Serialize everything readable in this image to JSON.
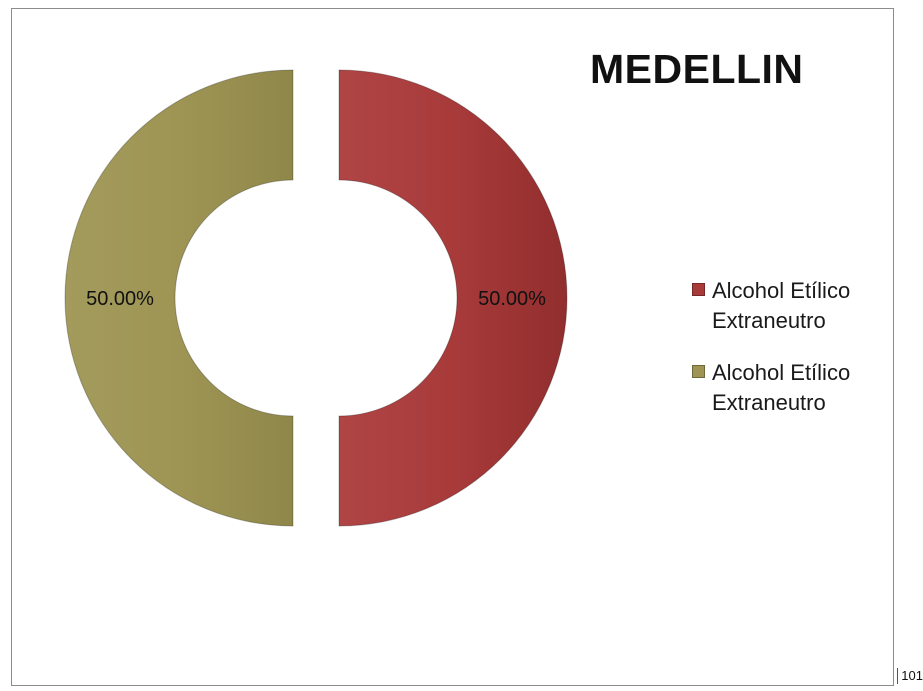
{
  "chart_data": {
    "type": "pie",
    "variant": "donut",
    "title": "MEDELLIN",
    "slices": [
      {
        "label": "Alcohol Etílico Extraneutro",
        "value": 50.0,
        "data_label": "50.00%",
        "color": "#a83a3a"
      },
      {
        "label": "Alcohol Etílico Extraneutro",
        "value": 50.0,
        "data_label": "50.00%",
        "color": "#9e9554"
      }
    ],
    "legend": {
      "placement": "right",
      "entries": [
        "Alcohol Etílico Extraneutro",
        "Alcohol Etílico Extraneutro"
      ]
    }
  },
  "page": {
    "number": "101"
  }
}
